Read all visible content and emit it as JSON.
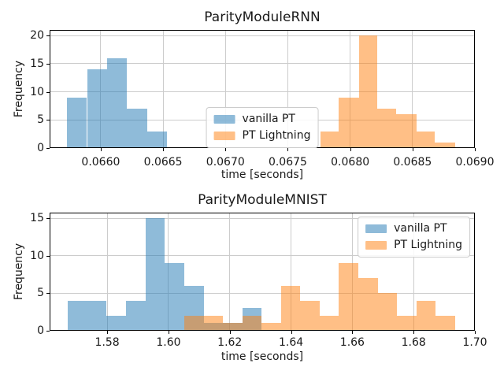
{
  "figure": {
    "background": "#ffffff",
    "grid_color": "#cccccc",
    "spine_color": "#000000",
    "text_color": "#1a1a1a",
    "vanilla_pt_color": "rgba(31,119,180,0.5)",
    "pt_lightning_color": "rgba(255,127,14,0.5)"
  },
  "chart_data": [
    {
      "type": "bar",
      "subtype": "histogram",
      "title": "ParityModuleRNN",
      "xlabel": "time [seconds]",
      "ylabel": "Frequency",
      "xlim": [
        0.06559,
        0.069
      ],
      "ylim": [
        0,
        21
      ],
      "grid": true,
      "legend_position": "lower center",
      "xticks": [
        0.066,
        0.0665,
        0.067,
        0.0675,
        0.068,
        0.0685,
        0.069
      ],
      "xtick_labels": [
        "0.0660",
        "0.0665",
        "0.0670",
        "0.0675",
        "0.0680",
        "0.0685",
        "0.0690"
      ],
      "yticks": [
        0,
        5,
        10,
        15,
        20
      ],
      "ytick_labels": [
        "0",
        "5",
        "10",
        "15",
        "20"
      ],
      "series": [
        {
          "name": "vanilla PT",
          "color": "rgba(31,119,180,0.5)",
          "bin_edges": [
            0.06573,
            0.06589,
            0.06605,
            0.06621,
            0.06637,
            0.06653
          ],
          "counts": [
            9,
            14,
            16,
            7,
            3
          ]
        },
        {
          "name": "PT Lightning",
          "color": "rgba(255,127,14,0.5)",
          "bin_edges": [
            0.06776,
            0.06791,
            0.06807,
            0.06822,
            0.06837,
            0.06853,
            0.06868,
            0.06884
          ],
          "counts": [
            3,
            9,
            20,
            7,
            6,
            3,
            1
          ]
        }
      ]
    },
    {
      "type": "bar",
      "subtype": "histogram",
      "title": "ParityModuleMNIST",
      "xlabel": "time [seconds]",
      "ylabel": "Frequency",
      "xlim": [
        1.5612,
        1.7
      ],
      "ylim": [
        0,
        15.75
      ],
      "grid": true,
      "legend_position": "upper right",
      "xticks": [
        1.58,
        1.6,
        1.62,
        1.64,
        1.66,
        1.68,
        1.7
      ],
      "xtick_labels": [
        "1.58",
        "1.60",
        "1.62",
        "1.64",
        "1.66",
        "1.68",
        "1.70"
      ],
      "yticks": [
        0,
        5,
        10,
        15
      ],
      "ytick_labels": [
        "0",
        "5",
        "10",
        "15"
      ],
      "series": [
        {
          "name": "vanilla PT",
          "color": "rgba(31,119,180,0.5)",
          "bin_edges": [
            1.5672,
            1.5735,
            1.5798,
            1.5862,
            1.5925,
            1.5988,
            1.6051,
            1.6115,
            1.6178,
            1.6241,
            1.6304
          ],
          "counts": [
            4,
            4,
            2,
            4,
            15,
            9,
            6,
            1,
            1,
            3
          ]
        },
        {
          "name": "PT Lightning",
          "color": "rgba(255,127,14,0.5)",
          "bin_edges": [
            1.6051,
            1.6114,
            1.6177,
            1.6241,
            1.6304,
            1.6367,
            1.643,
            1.6493,
            1.6556,
            1.662,
            1.6683,
            1.6746,
            1.6809,
            1.6872,
            1.6935
          ],
          "counts": [
            2,
            2,
            1,
            2,
            1,
            6,
            4,
            2,
            9,
            7,
            5,
            2,
            4,
            2
          ]
        }
      ]
    }
  ]
}
